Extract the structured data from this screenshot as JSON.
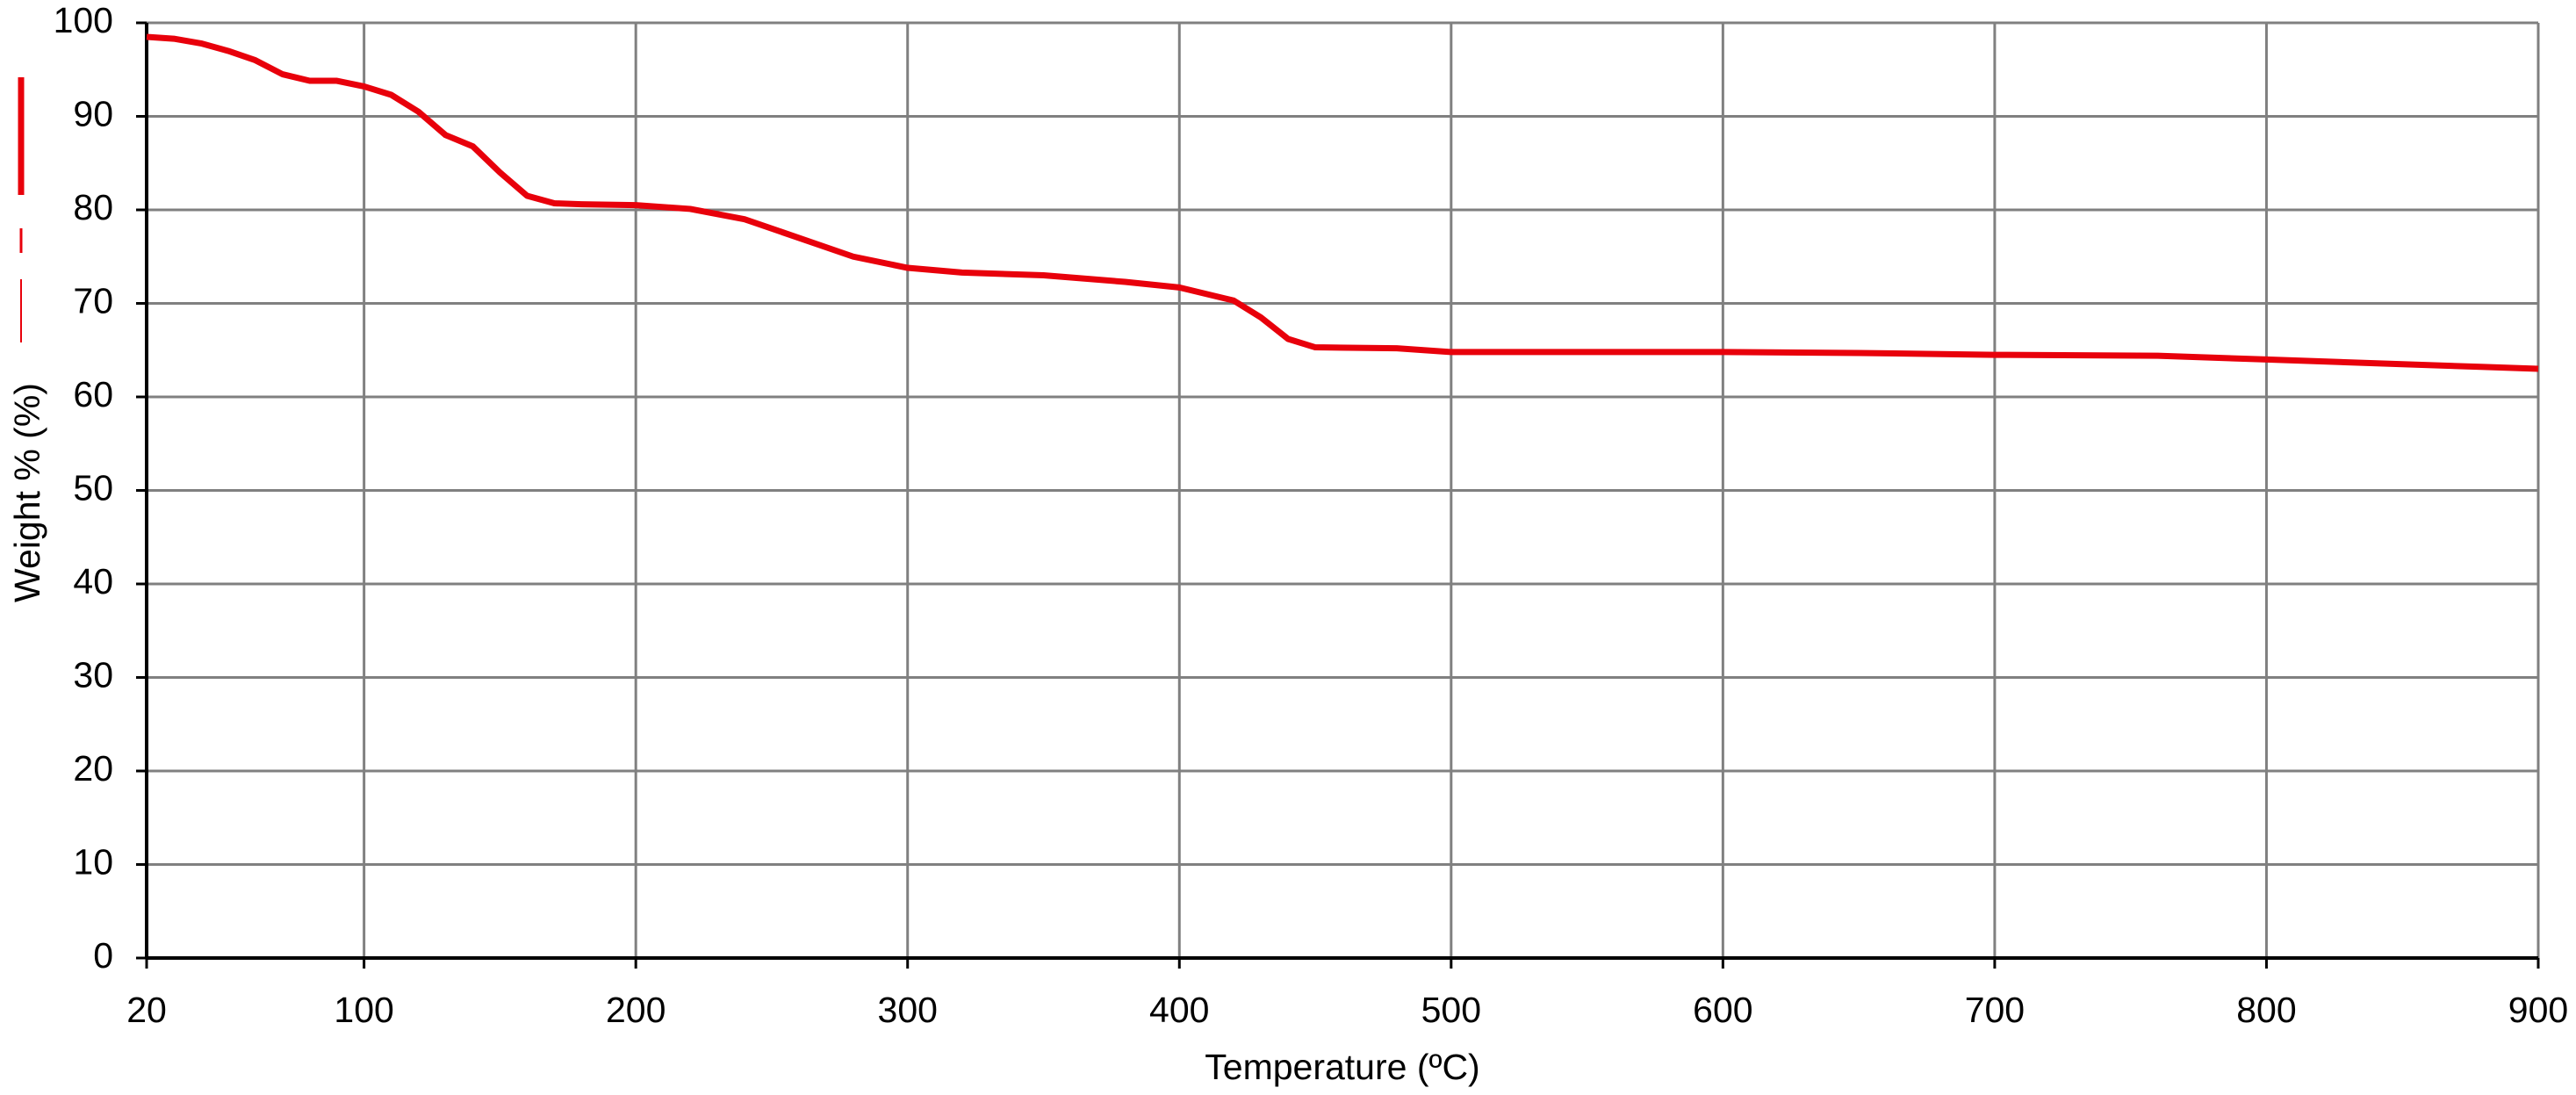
{
  "chart_data": {
    "type": "line",
    "x_label": "Temperature (ºC)",
    "y_label": "Weight % (%)",
    "x": [
      20,
      30,
      40,
      50,
      60,
      70,
      80,
      90,
      100,
      110,
      120,
      130,
      140,
      150,
      160,
      170,
      180,
      200,
      220,
      240,
      260,
      280,
      300,
      320,
      350,
      380,
      400,
      420,
      430,
      440,
      450,
      480,
      500,
      600,
      650,
      700,
      760,
      800,
      850,
      880,
      900
    ],
    "series": [
      {
        "color": "#e8000b",
        "values": [
          98.5,
          98.3,
          97.8,
          97,
          96,
          94.5,
          93.8,
          93.8,
          93.2,
          92.3,
          90.5,
          88,
          86.8,
          84,
          81.5,
          80.7,
          80.6,
          80.5,
          80.1,
          79,
          77,
          75,
          73.8,
          73.3,
          73,
          72.3,
          71.7,
          70.3,
          68.5,
          66.2,
          65.3,
          65.2,
          64.8,
          64.8,
          64.7,
          64.5,
          64.4,
          64,
          63.5,
          63.2,
          63
        ]
      }
    ],
    "xlim": [
      20,
      900
    ],
    "xticks": [
      20,
      100,
      200,
      300,
      400,
      500,
      600,
      700,
      800,
      900
    ],
    "ylim": [
      0,
      100
    ],
    "yticks": [
      0,
      10,
      20,
      30,
      40,
      50,
      60,
      70,
      80,
      90,
      100
    ],
    "grid": true
  }
}
